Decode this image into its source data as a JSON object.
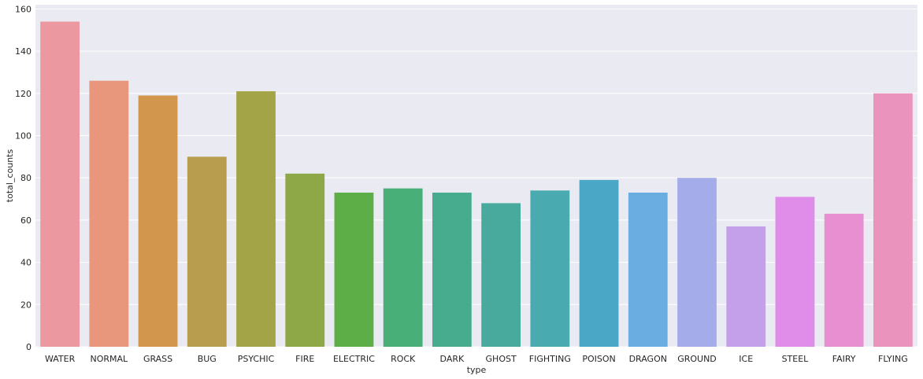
{
  "chart_data": {
    "type": "bar",
    "title": "",
    "xlabel": "type",
    "ylabel": "total_counts",
    "categories": [
      "WATER",
      "NORMAL",
      "GRASS",
      "BUG",
      "PSYCHIC",
      "FIRE",
      "ELECTRIC",
      "ROCK",
      "DARK",
      "GHOST",
      "FIGHTING",
      "POISON",
      "DRAGON",
      "GROUND",
      "ICE",
      "STEEL",
      "FAIRY",
      "FLYING"
    ],
    "values": [
      154,
      126,
      119,
      90,
      121,
      82,
      73,
      75,
      73,
      68,
      74,
      79,
      73,
      80,
      57,
      71,
      63,
      120
    ],
    "colors": [
      "#EC98A0",
      "#E8967C",
      "#D2964D",
      "#B89D4E",
      "#A3A347",
      "#8FA847",
      "#5DAE46",
      "#48AF78",
      "#47AC8D",
      "#47AA9C",
      "#49AAAF",
      "#4AA7C5",
      "#6AADE0",
      "#A5ACEA",
      "#C49FEA",
      "#DF8DE8",
      "#E88FD2",
      "#EA93BD"
    ],
    "ylim": [
      0,
      162
    ],
    "yticks": [
      0,
      20,
      40,
      60,
      80,
      100,
      120,
      140,
      160
    ],
    "grid": true,
    "background": "#EAEAF2",
    "grid_color": "#FFFFFF"
  }
}
